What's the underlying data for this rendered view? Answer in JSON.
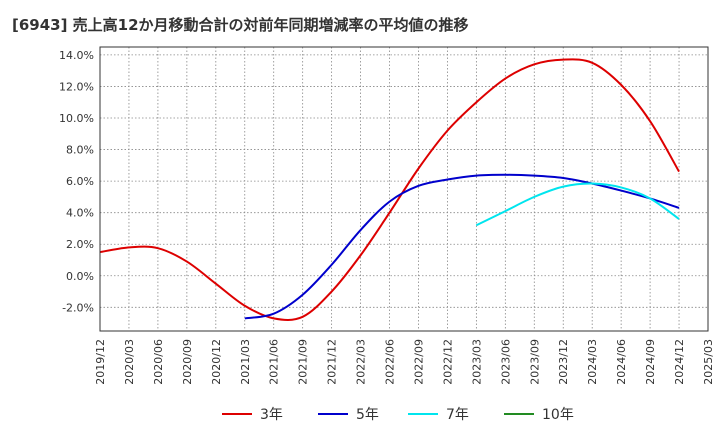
{
  "chart_data": {
    "type": "line",
    "title": "[6943]  売上高12か月移動合計の対前年同期増減率の平均値の推移",
    "xlabel": "",
    "ylabel": "",
    "x_ticks": [
      "2019/12",
      "2020/03",
      "2020/06",
      "2020/09",
      "2020/12",
      "2021/03",
      "2021/06",
      "2021/09",
      "2021/12",
      "2022/03",
      "2022/06",
      "2022/09",
      "2022/12",
      "2023/03",
      "2023/06",
      "2023/09",
      "2023/12",
      "2024/03",
      "2024/06",
      "2024/09",
      "2024/12",
      "2025/03"
    ],
    "y_ticks": [
      "-2.0%",
      "0.0%",
      "2.0%",
      "4.0%",
      "6.0%",
      "8.0%",
      "10.0%",
      "12.0%",
      "14.0%"
    ],
    "y_tick_values": [
      -2,
      0,
      2,
      4,
      6,
      8,
      10,
      12,
      14
    ],
    "ylim": [
      -3.5,
      14.5
    ],
    "grid": true,
    "legend_position": "bottom",
    "series": [
      {
        "name": "3年",
        "color": "#dd0000",
        "values": [
          [
            "2019/12",
            1.5
          ],
          [
            "2020/03",
            1.8
          ],
          [
            "2020/06",
            1.75
          ],
          [
            "2020/09",
            0.9
          ],
          [
            "2020/12",
            -0.5
          ],
          [
            "2021/03",
            -1.9
          ],
          [
            "2021/06",
            -2.7
          ],
          [
            "2021/09",
            -2.6
          ],
          [
            "2021/12",
            -1.0
          ],
          [
            "2022/03",
            1.3
          ],
          [
            "2022/06",
            4.0
          ],
          [
            "2022/09",
            6.8
          ],
          [
            "2022/12",
            9.2
          ],
          [
            "2023/03",
            11.0
          ],
          [
            "2023/06",
            12.5
          ],
          [
            "2023/09",
            13.4
          ],
          [
            "2023/12",
            13.7
          ],
          [
            "2024/03",
            13.5
          ],
          [
            "2024/06",
            12.1
          ],
          [
            "2024/09",
            9.8
          ],
          [
            "2024/12",
            6.6
          ]
        ]
      },
      {
        "name": "5年",
        "color": "#0000cc",
        "values": [
          [
            "2021/03",
            -2.7
          ],
          [
            "2021/06",
            -2.4
          ],
          [
            "2021/09",
            -1.2
          ],
          [
            "2021/12",
            0.7
          ],
          [
            "2022/03",
            2.9
          ],
          [
            "2022/06",
            4.7
          ],
          [
            "2022/09",
            5.7
          ],
          [
            "2022/12",
            6.1
          ],
          [
            "2023/03",
            6.35
          ],
          [
            "2023/06",
            6.4
          ],
          [
            "2023/09",
            6.35
          ],
          [
            "2023/12",
            6.2
          ],
          [
            "2024/03",
            5.85
          ],
          [
            "2024/06",
            5.4
          ],
          [
            "2024/09",
            4.9
          ],
          [
            "2024/12",
            4.3
          ]
        ]
      },
      {
        "name": "7年",
        "color": "#00e5ee",
        "values": [
          [
            "2023/03",
            3.2
          ],
          [
            "2023/06",
            4.1
          ],
          [
            "2023/09",
            5.0
          ],
          [
            "2023/12",
            5.65
          ],
          [
            "2024/03",
            5.85
          ],
          [
            "2024/06",
            5.6
          ],
          [
            "2024/09",
            4.9
          ],
          [
            "2024/12",
            3.6
          ]
        ]
      },
      {
        "name": "10年",
        "color": "#228b22",
        "values": []
      }
    ]
  }
}
